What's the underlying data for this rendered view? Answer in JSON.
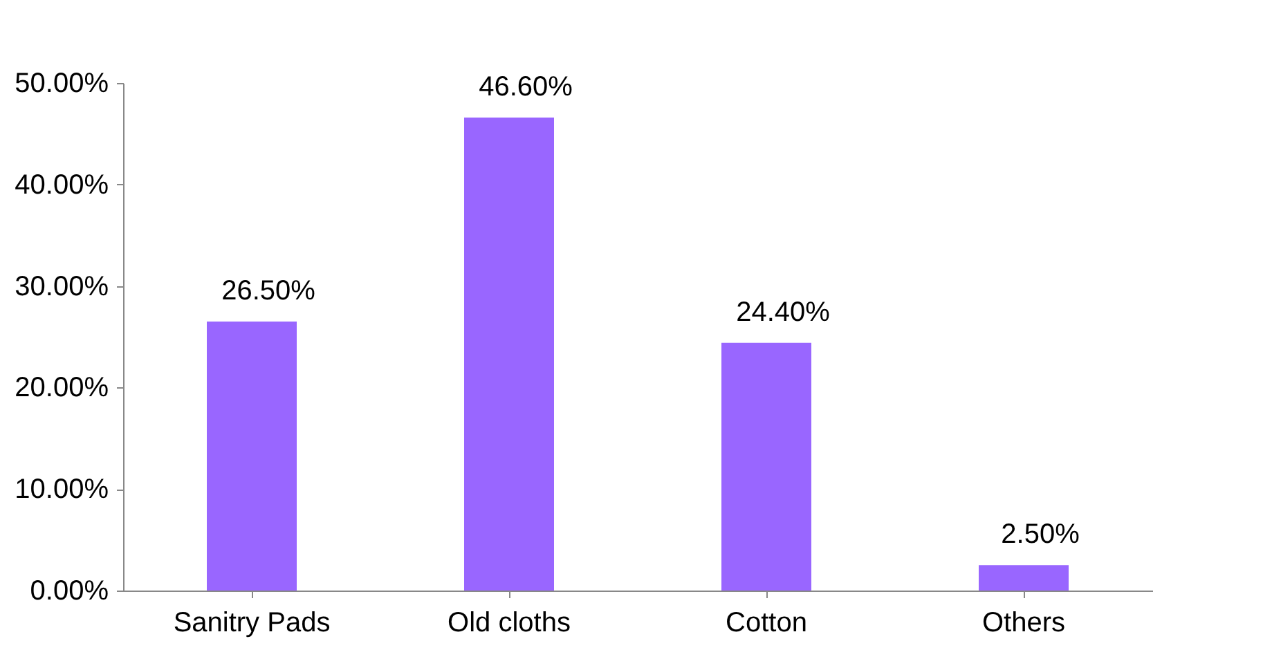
{
  "chart_data": {
    "type": "bar",
    "categories": [
      "Sanitry Pads",
      "Old cloths",
      "Cotton",
      "Others"
    ],
    "values": [
      26.5,
      46.6,
      24.4,
      2.5
    ],
    "value_labels": [
      "26.50%",
      "46.60%",
      "24.40%",
      "2.50%"
    ],
    "color": "#9966ff",
    "ylim": [
      0,
      50
    ],
    "yticks": [
      {
        "value": 0,
        "label": "0.00%"
      },
      {
        "value": 10,
        "label": "10.00%"
      },
      {
        "value": 20,
        "label": "20.00%"
      },
      {
        "value": 30,
        "label": "30.00%"
      },
      {
        "value": 40,
        "label": "40.00%"
      },
      {
        "value": 50,
        "label": "50.00%"
      }
    ],
    "grid": false
  }
}
